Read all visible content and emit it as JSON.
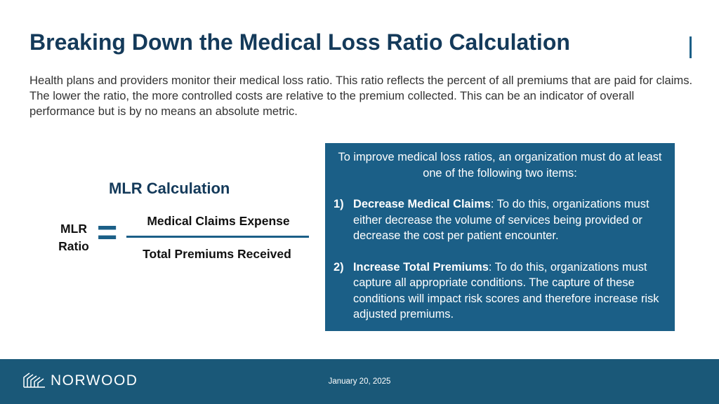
{
  "header": {
    "title": "Breaking Down the Medical Loss Ratio Calculation"
  },
  "body": {
    "paragraph": "Health plans and providers monitor their medical loss ratio. This ratio reflects the percent of all premiums that are paid for claims. The lower the ratio, the more controlled costs are relative to the premium collected. This can be an indicator of overall performance but is by no means an absolute metric."
  },
  "formula": {
    "title": "MLR Calculation",
    "lhs": "MLR Ratio",
    "operator": "=",
    "numerator": "Medical Claims Expense",
    "denominator": "Total Premiums Received"
  },
  "callout": {
    "intro": "To improve medical loss ratios, an organization must do at least one of the following two items:",
    "items": [
      {
        "number": "1)",
        "term": "Decrease Medical Claims",
        "text": ": To do this, organizations must either decrease the volume of services being provided or decrease the cost per patient encounter."
      },
      {
        "number": "2)",
        "term": "Increase Total Premiums",
        "text": ": To do this, organizations must capture all appropriate conditions. The capture of these conditions will impact risk scores and therefore increase risk adjusted premiums."
      }
    ]
  },
  "footer": {
    "logo": "NORWOOD",
    "date": "January 20, 2025"
  }
}
